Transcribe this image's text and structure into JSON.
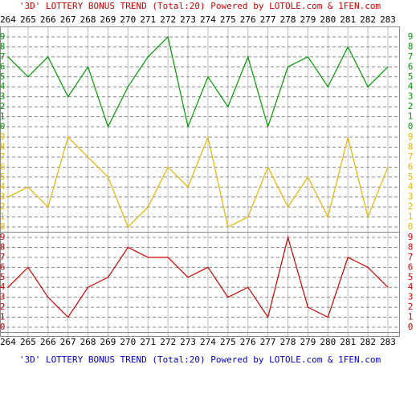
{
  "chart_data": [
    {
      "type": "line",
      "title": "'3D' LOTTERY BONUS TREND (Total:20)  Powered by LOTOLE.com & 1FEN.com",
      "categories": [
        "264",
        "265",
        "266",
        "267",
        "268",
        "269",
        "270",
        "271",
        "272",
        "273",
        "274",
        "275",
        "276",
        "277",
        "278",
        "279",
        "280",
        "281",
        "282",
        "283"
      ],
      "color": "#009900",
      "values": [
        7,
        5,
        7,
        3,
        6,
        0,
        4,
        7,
        9,
        0,
        5,
        2,
        7,
        0,
        6,
        7,
        4,
        8,
        4,
        6
      ],
      "ylim": [
        0,
        9
      ],
      "yticks": [
        0,
        1,
        2,
        3,
        4,
        5,
        6,
        7,
        8,
        9
      ],
      "grid": true
    },
    {
      "type": "line",
      "color": "#e6b400",
      "values": [
        3,
        4,
        2,
        9,
        7,
        5,
        0,
        2,
        6,
        4,
        9,
        0,
        1,
        6,
        2,
        5,
        1,
        9,
        1,
        6
      ],
      "ylim": [
        0,
        9
      ],
      "yticks": [
        0,
        1,
        2,
        3,
        4,
        5,
        6,
        7,
        8,
        9
      ],
      "grid": true
    },
    {
      "type": "line",
      "color": "#cc0000",
      "values": [
        4,
        6,
        3,
        1,
        4,
        5,
        8,
        7,
        7,
        5,
        6,
        3,
        4,
        1,
        9,
        2,
        1,
        7,
        6,
        4
      ],
      "ylim": [
        0,
        9
      ],
      "yticks": [
        0,
        1,
        2,
        3,
        4,
        5,
        6,
        7,
        8,
        9
      ],
      "grid": true
    }
  ]
}
